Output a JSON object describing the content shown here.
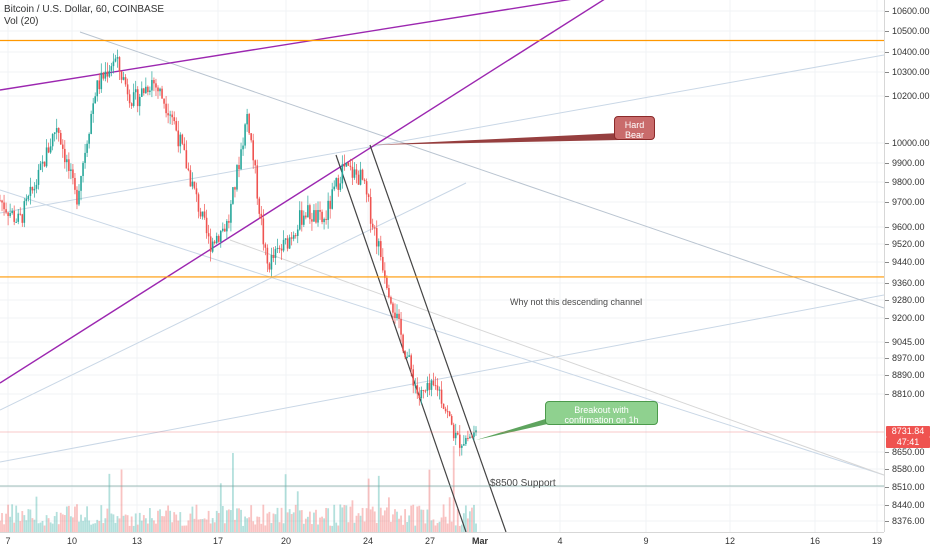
{
  "legend": {
    "title": "Bitcoin / U.S. Dollar, 60, COINBASE",
    "volume": "Vol (20)"
  },
  "price_axis": {
    "ticks": [
      "10600.00",
      "10500.00",
      "10400.00",
      "10300.00",
      "10200.00",
      "10000.00",
      "9900.00",
      "9800.00",
      "9700.00",
      "9600.00",
      "9520.00",
      "9440.00",
      "9360.00",
      "9280.00",
      "9200.00",
      "9045.00",
      "8970.00",
      "8890.00",
      "8810.00",
      "8650.00",
      "8580.00",
      "8510.00",
      "8440.00",
      "8376.00"
    ],
    "last_price": "8731.84",
    "countdown": "47:41",
    "last_price_color": "#ef5350"
  },
  "time_axis": {
    "labels": [
      "7",
      "10",
      "13",
      "17",
      "20",
      "24",
      "27",
      "Mar",
      "4",
      "9",
      "12",
      "16",
      "19"
    ],
    "bold_labels": [
      "Mar"
    ]
  },
  "annotations": {
    "hard_bear": "Hard\nBear",
    "breakout": "Breakout with\nconfirmation on 1h",
    "channel_note": "Why not this descending channel",
    "support": "$8500 Support"
  },
  "colors": {
    "up": "#26a69a",
    "down": "#ef5350",
    "horizontal_line": "#ff9800",
    "channel_line": "#9c27b0",
    "trend_lines": "#000000"
  },
  "chart_data": {
    "type": "candlestick",
    "symbol": "BTCUSD",
    "interval": "60",
    "exchange": "COINBASE",
    "ylim": [
      8340,
      10660
    ],
    "horizontal_levels": [
      10530,
      9450
    ],
    "last_close": 8731.84,
    "price_path": [
      [
        7,
        9800
      ],
      [
        8,
        9700
      ],
      [
        9,
        9900
      ],
      [
        10,
        10150
      ],
      [
        11,
        9800
      ],
      [
        12,
        10300
      ],
      [
        13,
        10450
      ],
      [
        14,
        10250
      ],
      [
        15,
        10350
      ],
      [
        16,
        10200
      ],
      [
        17,
        9900
      ],
      [
        18,
        9600
      ],
      [
        19,
        9700
      ],
      [
        20,
        10200
      ],
      [
        21,
        9500
      ],
      [
        22,
        9600
      ],
      [
        23,
        9750
      ],
      [
        24,
        9700
      ],
      [
        25,
        9950
      ],
      [
        26,
        9900
      ],
      [
        27,
        9550
      ],
      [
        28,
        9200
      ],
      [
        29,
        8900
      ],
      [
        30,
        8950
      ],
      [
        31,
        8700
      ],
      [
        32,
        8731.84
      ]
    ]
  }
}
